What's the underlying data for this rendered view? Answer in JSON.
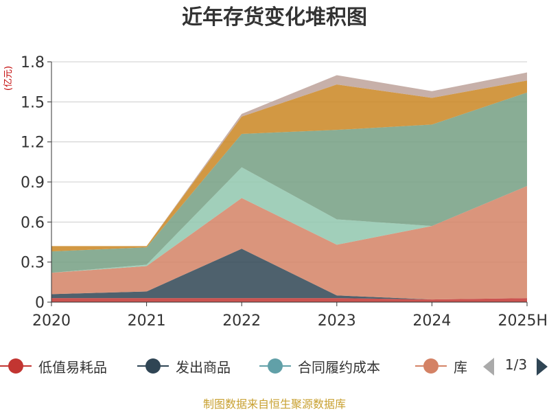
{
  "chart_data": {
    "type": "area",
    "stacked": true,
    "title": "近年存货变化堆积图",
    "ylabel": "(亿元)",
    "x": [
      "2020",
      "2021",
      "2022",
      "2023",
      "2024",
      "2025H"
    ],
    "ylim": [
      0,
      1.8
    ],
    "yticks": [
      "0",
      "0.3",
      "0.6",
      "0.9",
      "1.2",
      "1.5",
      "1.8"
    ],
    "grid": true,
    "legend_position": "bottom",
    "series": [
      {
        "name": "低值易耗品",
        "color": "#c23531",
        "values": [
          0.03,
          0.03,
          0.03,
          0.03,
          0.02,
          0.03
        ]
      },
      {
        "name": "发出商品",
        "color": "#2f4554",
        "values": [
          0.03,
          0.05,
          0.37,
          0.02,
          0.0,
          0.0
        ]
      },
      {
        "name": "合同履约成本",
        "color": "#61a0a8",
        "values": [
          0.0,
          0.0,
          0.0,
          0.0,
          0.0,
          0.0
        ]
      },
      {
        "name": "库存商品",
        "color": "#d48265",
        "values": [
          0.16,
          0.19,
          0.38,
          0.38,
          0.55,
          0.84
        ]
      },
      {
        "name": "",
        "color": "#91c7ae",
        "values": [
          0.0,
          0.01,
          0.23,
          0.19,
          0.0,
          0.0
        ]
      },
      {
        "name": "",
        "color": "#749f83",
        "values": [
          0.16,
          0.13,
          0.25,
          0.67,
          0.76,
          0.7
        ]
      },
      {
        "name": "",
        "color": "#ca8622",
        "values": [
          0.04,
          0.01,
          0.13,
          0.34,
          0.2,
          0.09
        ]
      },
      {
        "name": "",
        "color": "#bda29a",
        "values": [
          0.0,
          0.0,
          0.02,
          0.07,
          0.05,
          0.06
        ]
      }
    ]
  },
  "legend": {
    "visible_count": 4,
    "truncated_last_label": "库",
    "page_indicator": "1/3"
  },
  "source_text": "制图数据来自恒生聚源数据库",
  "colors": {
    "title": "#333333",
    "ylabel": "#c00000",
    "source": "#c8a030",
    "axis": "#333333",
    "grid": "#cccccc"
  }
}
